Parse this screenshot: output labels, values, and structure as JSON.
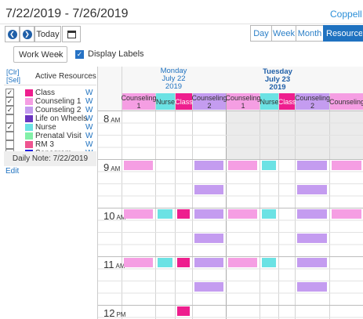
{
  "header": {
    "date_range": "7/22/2019 - 7/26/2019",
    "site": "Coppell"
  },
  "toolbar": {
    "prev_icon": "chevron-left-icon",
    "next_icon": "chevron-right-icon",
    "today_label": "Today",
    "calendar_icon": "calendar-icon",
    "views": [
      "Day",
      "Week",
      "Month",
      "Resources"
    ],
    "active_view": "Resources",
    "view_mode": "Work Week",
    "display_labels": "Display Labels",
    "display_labels_checked": true
  },
  "resources": {
    "clr": "[Clr]",
    "sel": "[Sel]",
    "title": "Active Resources",
    "items": [
      {
        "name": "Class",
        "color": "#ee1e8e",
        "checked": true,
        "w": "W"
      },
      {
        "name": "Counseling 1",
        "color": "#f59ee3",
        "checked": true,
        "w": "W"
      },
      {
        "name": "Counseling 2",
        "color": "#c49cf0",
        "checked": true,
        "w": "W"
      },
      {
        "name": "Life on Wheels",
        "color": "#6a35c0",
        "checked": false,
        "w": "W"
      },
      {
        "name": "Nurse",
        "color": "#6be2e4",
        "checked": true,
        "w": "W"
      },
      {
        "name": "Prenatal Visit",
        "color": "#82f0a8",
        "checked": false,
        "w": "W"
      },
      {
        "name": "RM 3",
        "color": "#ee5590",
        "checked": false,
        "w": "W"
      },
      {
        "name": "Sonogram",
        "color": "#2222dd",
        "checked": false,
        "w": "W"
      }
    ],
    "daily_note": "Daily Note: 7/22/2019",
    "edit": "Edit"
  },
  "calendar": {
    "days": [
      {
        "name": "Monday",
        "date": "July 22",
        "year": "2019",
        "bold": false
      },
      {
        "name": "Tuesday",
        "date": "July 23",
        "year": "2019",
        "bold": true
      }
    ],
    "resource_columns": [
      {
        "label": "Counseling 1",
        "color": "#f59ee3"
      },
      {
        "label": "Nurse",
        "color": "#6be2e4"
      },
      {
        "label": "Class",
        "color": "#ee1e8e",
        "text_color": "#ffffff"
      },
      {
        "label": "Counseling 2",
        "color": "#c49cf0"
      },
      {
        "label": "Counseling 1",
        "color": "#f59ee3"
      },
      {
        "label": "Nurse",
        "color": "#6be2e4"
      },
      {
        "label": "Class",
        "color": "#ee1e8e",
        "text_color": "#ffffff"
      },
      {
        "label": "Counseling 2",
        "color": "#c49cf0"
      },
      {
        "label": "Counseling",
        "color": "#f59ee3"
      }
    ],
    "hours": [
      {
        "hour": "8",
        "ampm": "AM"
      },
      {
        "hour": "9",
        "ampm": "AM"
      },
      {
        "hour": "10",
        "ampm": "AM"
      },
      {
        "hour": "11",
        "ampm": "AM"
      },
      {
        "hour": "12",
        "ampm": "PM"
      }
    ]
  }
}
